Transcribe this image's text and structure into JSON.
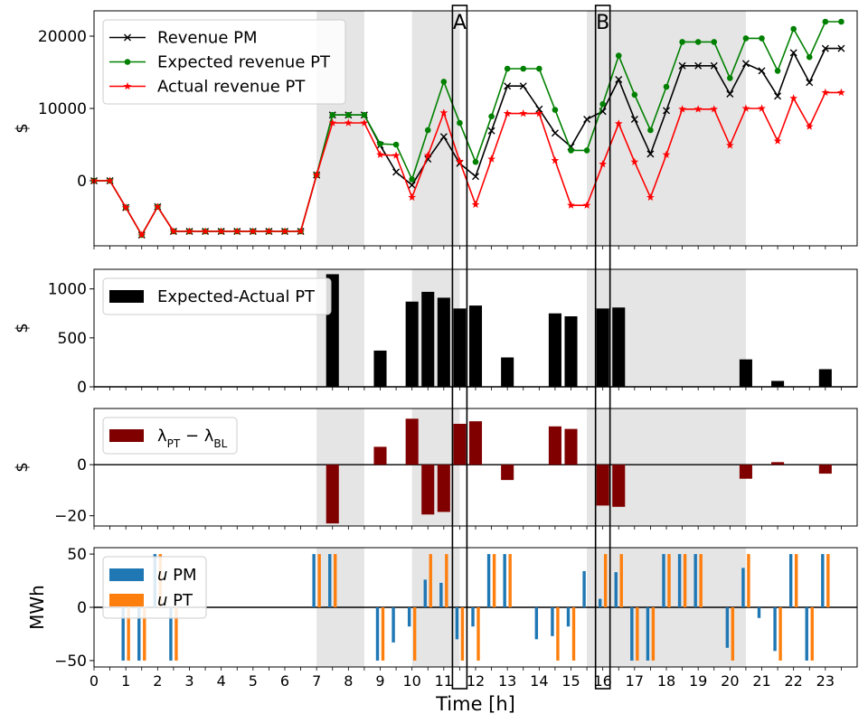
{
  "colors": {
    "shade": "#e5e5e5",
    "revenue_pm": "#000000",
    "expected_pt": "#008000",
    "actual_pt": "#ff0000",
    "diff_bar": "#000000",
    "lambda_bar": "#800000",
    "u_pm": "#1f77b4",
    "u_pt": "#ff7f0e"
  },
  "chart_data": [
    {
      "type": "line",
      "ylabel": "$",
      "ylim": [
        -9000,
        23500
      ],
      "yticks": [
        0,
        10000,
        20000
      ],
      "legend_position": "top-left",
      "shaded_intervals": [
        [
          7,
          8.5
        ],
        [
          10,
          11.5
        ],
        [
          15.5,
          20.5
        ]
      ],
      "highlight_boxes": [
        {
          "label": "A",
          "x": 11.5
        },
        {
          "label": "B",
          "x": 16
        }
      ],
      "x": [
        0,
        0.5,
        1,
        1.5,
        2,
        2.5,
        3,
        3.5,
        4,
        4.5,
        5,
        5.5,
        6,
        6.5,
        7,
        7.5,
        8,
        8.5,
        9,
        9.5,
        10,
        10.5,
        11,
        11.5,
        12,
        12.5,
        13,
        13.5,
        14,
        14.5,
        15,
        15.5,
        16,
        16.5,
        17,
        17.5,
        18,
        18.5,
        19,
        19.5,
        20,
        20.5,
        21,
        21.5,
        22,
        22.5,
        23,
        23.5
      ],
      "series": [
        {
          "name": "Revenue PM",
          "marker": "x",
          "values": [
            0,
            0,
            -3700,
            -7500,
            -3600,
            -7000,
            -7000,
            -7000,
            -7000,
            -7000,
            -7000,
            -7000,
            -7000,
            -7000,
            800,
            9100,
            9100,
            9100,
            4900,
            1200,
            -600,
            3000,
            6100,
            2400,
            600,
            6900,
            13100,
            13100,
            9900,
            6600,
            4700,
            8500,
            9600,
            14000,
            8500,
            3700,
            9700,
            15900,
            15900,
            15900,
            12000,
            16200,
            15200,
            11700,
            17700,
            13600,
            18300,
            18300
          ]
        },
        {
          "name": "Expected revenue PT",
          "marker": "o",
          "values": [
            0,
            0,
            -3700,
            -7500,
            -3600,
            -7000,
            -7000,
            -7000,
            -7000,
            -7000,
            -7000,
            -7000,
            -7000,
            -7000,
            800,
            9100,
            9100,
            9100,
            5100,
            5000,
            200,
            7000,
            13700,
            8000,
            2600,
            8900,
            15500,
            15500,
            15500,
            9800,
            4200,
            4200,
            10600,
            17300,
            11900,
            7000,
            13000,
            19200,
            19200,
            19200,
            14200,
            19700,
            19700,
            15200,
            21000,
            17100,
            22000,
            22000
          ]
        },
        {
          "name": "Actual revenue PT",
          "marker": "*",
          "values": [
            0,
            0,
            -3700,
            -7500,
            -3600,
            -7000,
            -7000,
            -7000,
            -7000,
            -7000,
            -7000,
            -7000,
            -7000,
            -7000,
            800,
            8000,
            8000,
            8000,
            3600,
            3500,
            -2300,
            3500,
            9400,
            2700,
            -3300,
            3000,
            9300,
            9300,
            9300,
            2800,
            -3400,
            -3400,
            2300,
            7900,
            2600,
            -2300,
            3600,
            9900,
            9900,
            9900,
            4900,
            10000,
            10000,
            5500,
            11400,
            7500,
            12200,
            12200
          ]
        }
      ]
    },
    {
      "type": "bar",
      "ylabel": "$",
      "ylim": [
        0,
        1200
      ],
      "yticks": [
        0,
        500,
        1000
      ],
      "legend_position": "top-left",
      "series": [
        {
          "name": "Expected-Actual PT",
          "x": [
            7.5,
            9,
            10,
            10.5,
            11,
            11.5,
            12,
            13,
            14.5,
            15,
            16,
            16.5,
            20.5,
            21.5,
            23
          ],
          "values": [
            1150,
            370,
            870,
            970,
            910,
            800,
            830,
            300,
            750,
            720,
            800,
            810,
            280,
            60,
            180
          ]
        }
      ]
    },
    {
      "type": "bar",
      "ylabel": "$",
      "ylim": [
        -24,
        22
      ],
      "yticks": [
        -20,
        0
      ],
      "legend_position": "top-left",
      "series": [
        {
          "name": "λPT − λBL",
          "x": [
            7.5,
            9,
            10,
            10.5,
            11,
            11.5,
            12,
            13,
            14.5,
            15,
            16,
            16.5,
            20.5,
            21.5,
            23
          ],
          "values": [
            -23,
            7,
            18,
            -19.5,
            -18.5,
            16,
            17,
            -6,
            15,
            14,
            -16,
            -16.5,
            -5.5,
            1,
            -3.5
          ]
        }
      ]
    },
    {
      "type": "bar",
      "xlabel": "Time [h]",
      "ylabel": "MWh",
      "ylim": [
        -56,
        56
      ],
      "yticks": [
        -50,
        0,
        50
      ],
      "xlim": [
        0,
        24
      ],
      "xticks": [
        "0",
        "1",
        "2",
        "3",
        "4",
        "5",
        "6",
        "7",
        "8",
        "9",
        "10",
        "11",
        "12",
        "13",
        "14",
        "15",
        "16",
        "17",
        "18",
        "19",
        "20",
        "21",
        "22",
        "23"
      ],
      "legend_position": "top-left",
      "series": [
        {
          "name": "u PM",
          "x": [
            1,
            1.5,
            2,
            2.5,
            7,
            7.5,
            9,
            9.5,
            10,
            10.5,
            11,
            11.5,
            12,
            12.5,
            13,
            14,
            14.5,
            15,
            15.5,
            16,
            16.5,
            17,
            17.5,
            18,
            18.5,
            19,
            20,
            20.5,
            21,
            21.5,
            22,
            22.5,
            23
          ],
          "values": [
            -50,
            -50,
            50,
            -50,
            50,
            50,
            -50,
            -33,
            -18,
            26,
            23,
            -30,
            -18,
            50,
            50,
            -30,
            -27,
            -18,
            34,
            8,
            33,
            -50,
            -50,
            50,
            50,
            50,
            -38,
            37,
            -10,
            -41,
            50,
            -50,
            50
          ]
        },
        {
          "name": "u PT",
          "x": [
            1,
            1.5,
            2,
            2.5,
            7,
            7.5,
            9,
            10,
            10.5,
            11,
            11.5,
            12,
            12.5,
            13,
            14.5,
            15,
            16,
            16.5,
            17,
            17.5,
            18,
            18.5,
            19,
            20,
            20.5,
            21.5,
            22,
            22.5,
            23
          ],
          "values": [
            -50,
            -50,
            50,
            -50,
            50,
            50,
            -50,
            -50,
            50,
            50,
            -50,
            -50,
            50,
            50,
            -50,
            -50,
            50,
            50,
            -50,
            -50,
            50,
            50,
            50,
            -50,
            50,
            -50,
            50,
            -50,
            50
          ]
        }
      ]
    }
  ]
}
